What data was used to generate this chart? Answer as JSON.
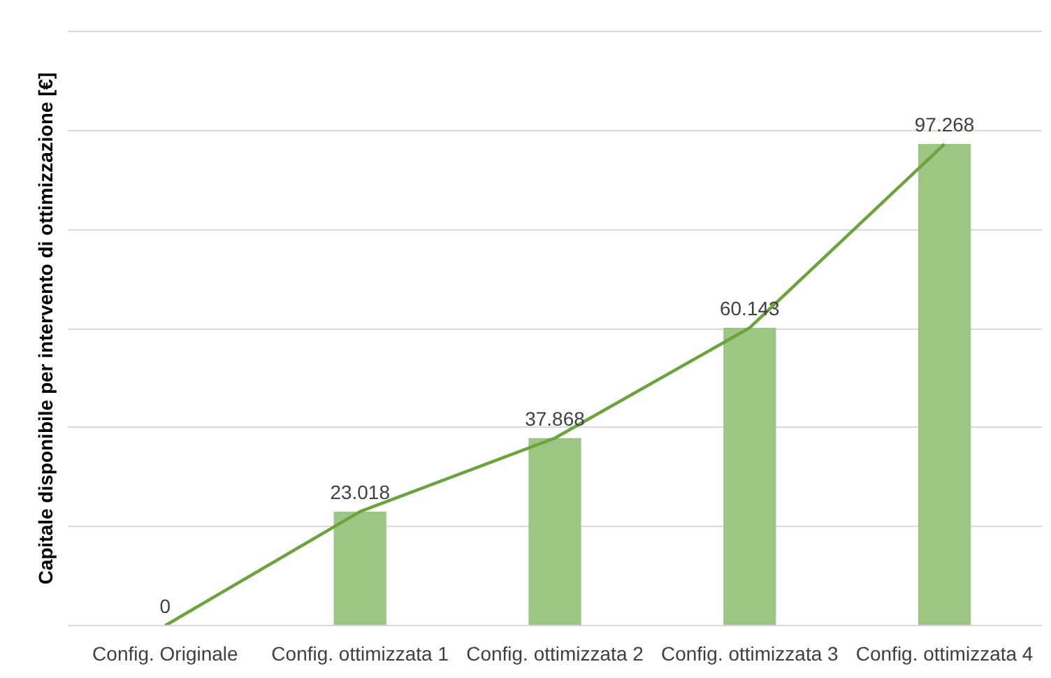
{
  "chart_data": {
    "type": "bar",
    "ylabel": "Capitale disponibile per intervento di ottimizzazione [€]",
    "categories": [
      "Config. Originale",
      "Config. ottimizzata 1",
      "Config. ottimizzata 2",
      "Config. ottimizzata 3",
      "Config. ottimizzata 4"
    ],
    "series": [
      {
        "color": "#9dc584",
        "values": [
          0,
          23018,
          37868,
          60143,
          97268
        ],
        "value_labels": [
          "0",
          "23.018",
          "37.868",
          "60.143",
          "97.268"
        ]
      },
      {
        "type": "line",
        "color": "#6ca33f",
        "values": [
          0,
          23018,
          37868,
          60143,
          97268
        ],
        "line_style": "solid"
      }
    ],
    "ylim": [
      0,
      120000
    ],
    "yticks": [
      {
        "value": 0,
        "label": null
      },
      {
        "value": 20000,
        "label": null
      },
      {
        "value": 40000,
        "label": null
      },
      {
        "value": 60000,
        "label": null
      },
      {
        "value": 80000,
        "label": null
      },
      {
        "value": 100000,
        "label": null
      },
      {
        "value": 120000,
        "label": null
      }
    ],
    "grid": "y",
    "tick_labels": "x"
  }
}
